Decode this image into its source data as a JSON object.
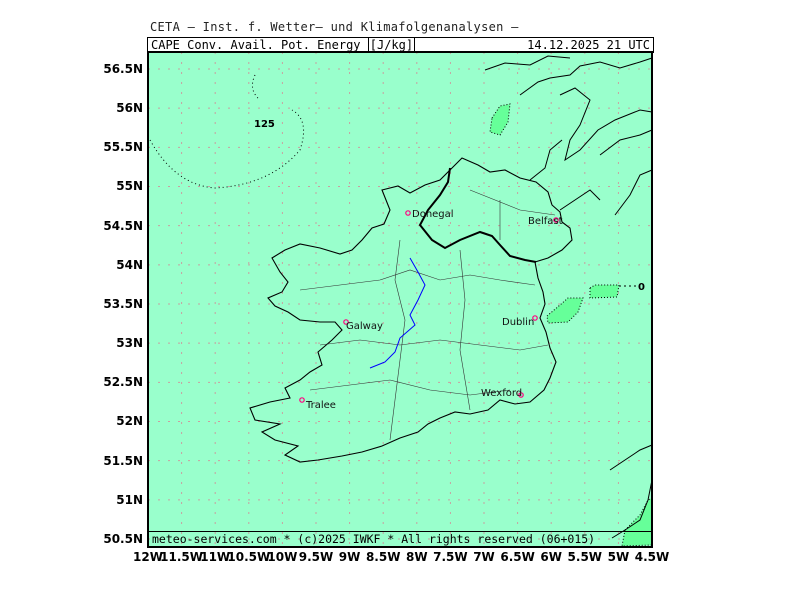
{
  "header": {
    "organization": "CETA — Inst. f. Wetter— und Klimafolgenanalysen —",
    "parameter": "CAPE_Conv._Avail._Pot._Energy_",
    "unit": "[J/kg]",
    "valid_time": "14.12.2025 21 UTC"
  },
  "footer": "meteo-services.com * (c)2025 IWKF * All rights reserved (06+015)",
  "colors": {
    "background_cape_0": "#99ffcc",
    "cape_low_shading": "#66ff99",
    "grid": "#c8a0a0",
    "coast": "#000000",
    "river": "#0000ff",
    "city_marker": "#ff0080"
  },
  "axes": {
    "lat_labels": [
      "56.5N",
      "56N",
      "55.5N",
      "55N",
      "54.5N",
      "54N",
      "53.5N",
      "53N",
      "52.5N",
      "52N",
      "51.5N",
      "51N",
      "50.5N"
    ],
    "lat_values": [
      56.5,
      56,
      55.5,
      55,
      54.5,
      54,
      53.5,
      53,
      52.5,
      52,
      51.5,
      51,
      50.5
    ],
    "lon_labels": [
      "12W",
      "11.5W",
      "11W",
      "10.5W",
      "10W",
      "9.5W",
      "9W",
      "8.5W",
      "8W",
      "7.5W",
      "7W",
      "6.5W",
      "6W",
      "5.5W",
      "5W",
      "4.5W"
    ],
    "lon_values": [
      -12,
      -11.5,
      -11,
      -10.5,
      -10,
      -9.5,
      -9,
      -8.5,
      -8,
      -7.5,
      -7,
      -6.5,
      -6,
      -5.5,
      -5,
      -4.5
    ]
  },
  "contour_labels": [
    "125",
    "0"
  ],
  "cities": [
    {
      "name": "Donegal",
      "icon": "city-marker-icon"
    },
    {
      "name": "Belfast",
      "icon": "city-marker-icon"
    },
    {
      "name": "Galway",
      "icon": "city-marker-icon"
    },
    {
      "name": "Dublin",
      "icon": "city-marker-icon"
    },
    {
      "name": "Tralee",
      "icon": "city-marker-icon"
    },
    {
      "name": "Wexford",
      "icon": "city-marker-icon"
    }
  ]
}
